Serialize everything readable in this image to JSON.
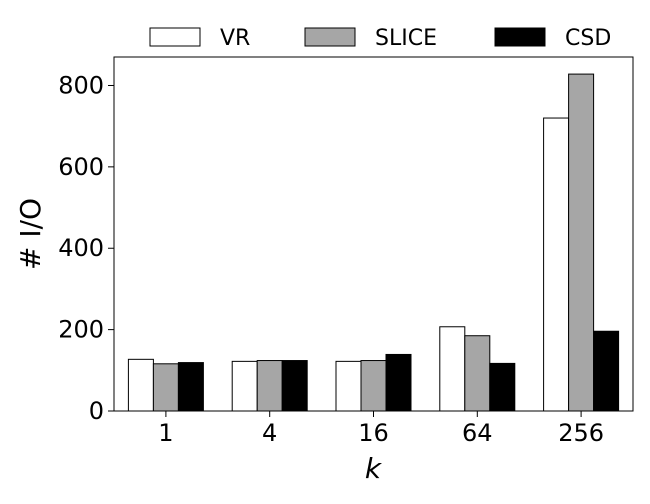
{
  "chart_data": {
    "type": "bar",
    "title": "",
    "xlabel": "k",
    "ylabel": "# I/O",
    "categories": [
      "1",
      "4",
      "16",
      "64",
      "256"
    ],
    "ylim": [
      0,
      870
    ],
    "yticks": [
      0,
      200,
      400,
      600,
      800
    ],
    "grid": false,
    "legend": "top, outside, horizontal",
    "series": [
      {
        "name": "VR",
        "color": "#ffffff",
        "values": [
          127,
          122,
          122,
          207,
          720
        ]
      },
      {
        "name": "SLICE",
        "color": "#a6a6a6",
        "values": [
          116,
          124,
          124,
          185,
          828
        ]
      },
      {
        "name": "CSD",
        "color": "#000000",
        "values": [
          119,
          124,
          139,
          117,
          196
        ]
      }
    ]
  }
}
